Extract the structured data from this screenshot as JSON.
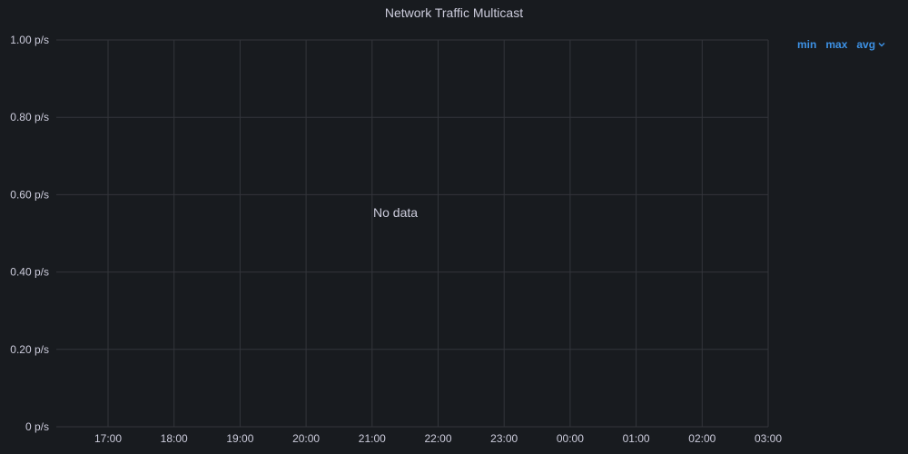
{
  "panel": {
    "title": "Network Traffic Multicast",
    "legend": {
      "columns": [
        "min",
        "max",
        "avg"
      ],
      "sort_icon": "chevron-down-icon"
    },
    "empty_message": "No data"
  },
  "colors": {
    "background": "#181b1f",
    "grid": "#33353b",
    "axis_text": "#ccccdc",
    "legend_link": "#3d92e6"
  },
  "chart_data": {
    "type": "line",
    "title": "Network Traffic Multicast",
    "xlabel": "",
    "ylabel": "",
    "x_ticks": [
      "17:00",
      "18:00",
      "19:00",
      "20:00",
      "21:00",
      "22:00",
      "23:00",
      "00:00",
      "01:00",
      "02:00",
      "03:00"
    ],
    "y_ticks": [
      0,
      0.2,
      0.4,
      0.6,
      0.8,
      1.0
    ],
    "y_tick_labels": [
      "0 p/s",
      "0.20 p/s",
      "0.40 p/s",
      "0.60 p/s",
      "0.80 p/s",
      "1.00 p/s"
    ],
    "ylim": [
      0,
      1.0
    ],
    "y_unit": "p/s",
    "grid": true,
    "series": []
  }
}
